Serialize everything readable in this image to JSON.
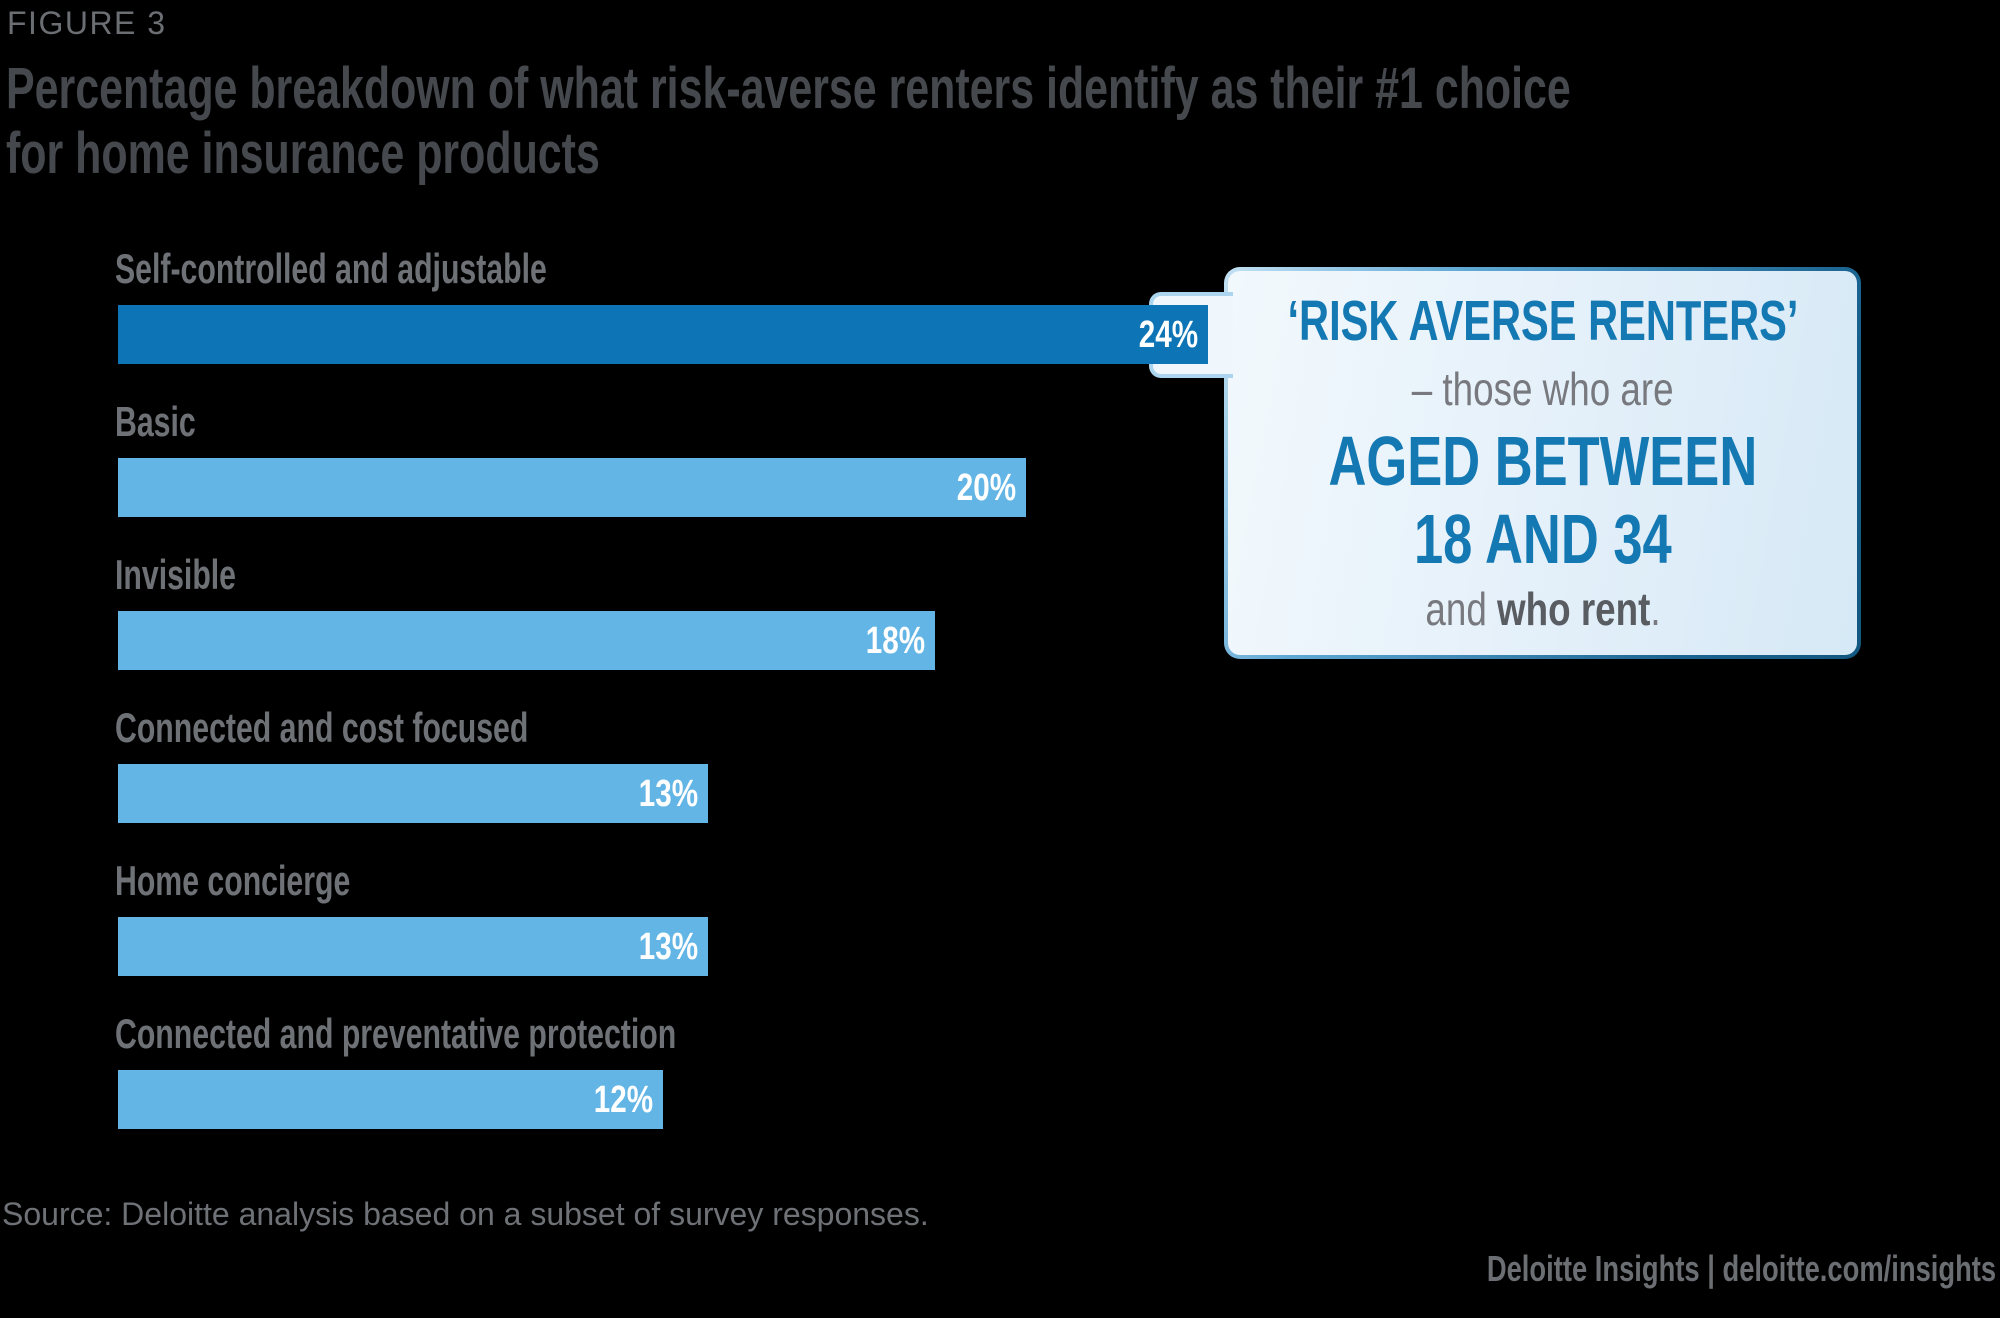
{
  "figure_label": "FIGURE 3",
  "title_lines": [
    "Percentage breakdown of what risk-averse renters identify as their #1 choice",
    "for home insurance products"
  ],
  "chart_data": {
    "type": "bar",
    "orientation": "horizontal",
    "title": "Percentage breakdown of what risk-averse renters identify as their #1 choice for home insurance products",
    "categories": [
      "Self-controlled and adjustable",
      "Basic",
      "Invisible",
      "Connected and cost focused",
      "Home concierge",
      "Connected and preventative protection"
    ],
    "values": [
      24,
      20,
      18,
      13,
      13,
      12
    ],
    "value_labels": [
      "24%",
      "20%",
      "18%",
      "13%",
      "13%",
      "12%"
    ],
    "highlight_index": 0,
    "xlim": [
      0,
      26
    ],
    "grid": false,
    "legend": false,
    "colors": {
      "highlight_bar": "#0d74b5",
      "bar": "#62b5e5",
      "value_text": "#ffffff"
    }
  },
  "callout": {
    "line1": "‘RISK AVERSE RENTERS’",
    "line2": "– those who are",
    "line3": "AGED BETWEEN",
    "line4": "18 AND 34",
    "line5_prefix": "and ",
    "line5_bold": "who rent",
    "line5_suffix": ".",
    "accent_color": "#1478b2"
  },
  "source": "Source: Deloitte analysis based on a subset of survey responses.",
  "footer": "Deloitte Insights | deloitte.com/insights"
}
